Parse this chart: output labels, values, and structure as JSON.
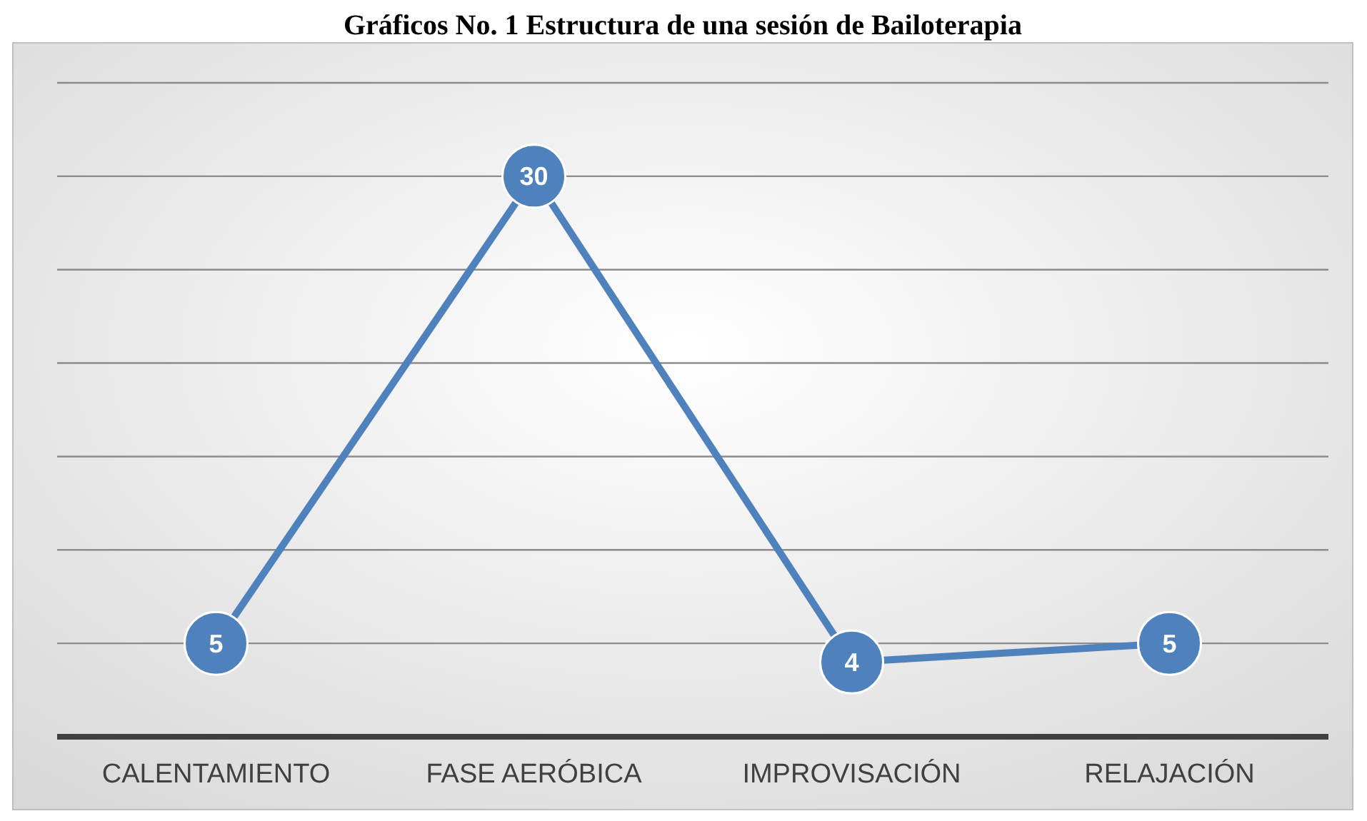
{
  "chart_data": {
    "type": "line",
    "title": "Gráficos No. 1 Estructura de una sesión de Bailoterapia",
    "categories": [
      "CALENTAMIENTO",
      "FASE AERÓBICA",
      "IMPROVISACIÓN",
      "RELAJACIÓN"
    ],
    "series": [
      {
        "color": "#4f81bd",
        "values": [
          5,
          30,
          4,
          5
        ]
      }
    ],
    "ylim": [
      0,
      35
    ],
    "yticks": [
      {
        "value": 5,
        "label": null
      },
      {
        "value": 10,
        "label": null
      },
      {
        "value": 15,
        "label": null
      },
      {
        "value": 20,
        "label": null
      },
      {
        "value": 25,
        "label": null
      },
      {
        "value": 30,
        "label": null
      },
      {
        "value": 35,
        "label": null
      }
    ],
    "tick_labels": "x",
    "grid": "y",
    "data_labels": true,
    "marker": "circle",
    "line_style": "solid"
  }
}
